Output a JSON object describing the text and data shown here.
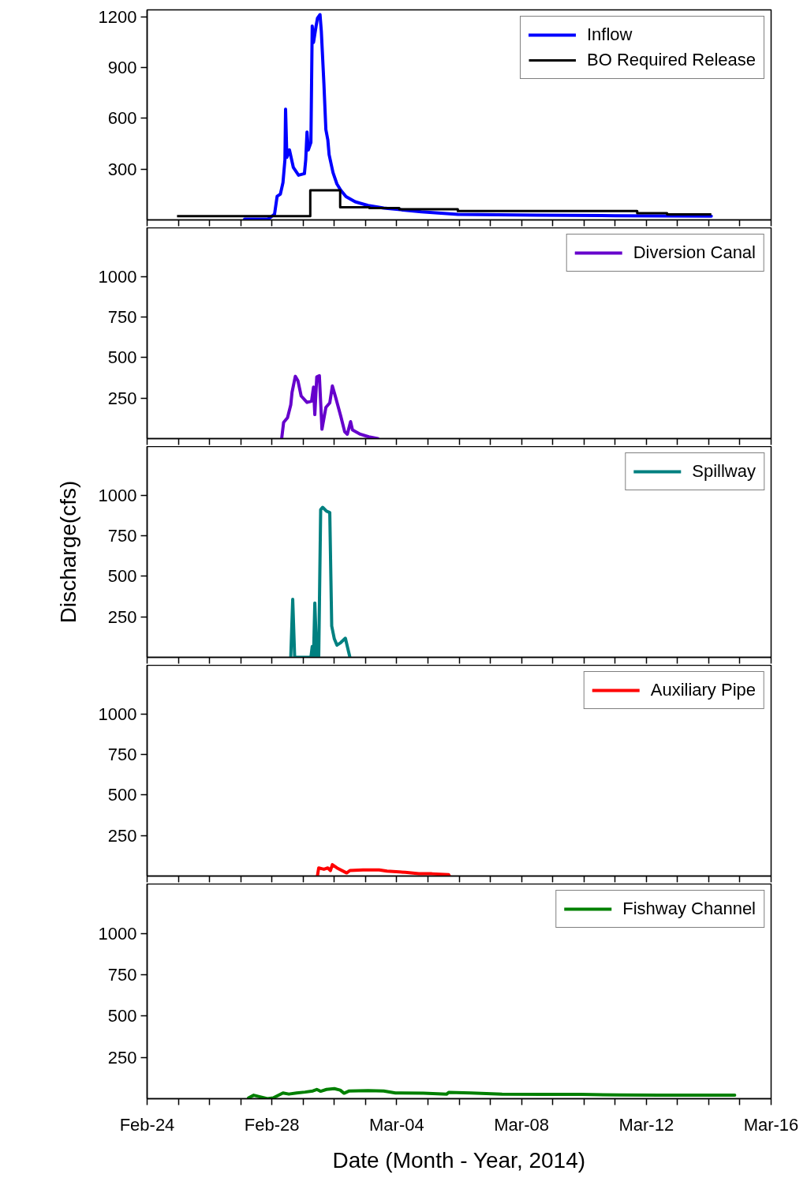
{
  "chart_data": [
    {
      "type": "line",
      "xlim": [
        "2014-02-24",
        "2014-03-16"
      ],
      "ylim": [
        0,
        1240
      ],
      "yticks": [
        300,
        600,
        900,
        1200
      ],
      "tick_labels": "y",
      "legend": "top right",
      "xticks": [
        {
          "value": "2014-02-24",
          "label": null
        },
        {
          "value": "2014-02-25",
          "label": null
        },
        {
          "value": "2014-02-26",
          "label": null
        },
        {
          "value": "2014-02-27",
          "label": null
        },
        {
          "value": "2014-02-28",
          "label": null
        },
        {
          "value": "2014-03-01",
          "label": null
        },
        {
          "value": "2014-03-02",
          "label": null
        },
        {
          "value": "2014-03-03",
          "label": null
        },
        {
          "value": "2014-03-04",
          "label": null
        },
        {
          "value": "2014-03-05",
          "label": null
        },
        {
          "value": "2014-03-06",
          "label": null
        },
        {
          "value": "2014-03-07",
          "label": null
        },
        {
          "value": "2014-03-08",
          "label": null
        },
        {
          "value": "2014-03-09",
          "label": null
        },
        {
          "value": "2014-03-10",
          "label": null
        },
        {
          "value": "2014-03-11",
          "label": null
        },
        {
          "value": "2014-03-12",
          "label": null
        },
        {
          "value": "2014-03-13",
          "label": null
        },
        {
          "value": "2014-03-14",
          "label": null
        },
        {
          "value": "2014-03-15",
          "label": null
        },
        {
          "value": "2014-03-16",
          "label": null
        }
      ],
      "series": [
        {
          "name": "Inflow",
          "color": "#0000ff",
          "x": [
            "2014-02-27T03:00",
            "2014-02-27T17:00",
            "2014-02-27T21:00",
            "2014-02-28T02:00",
            "2014-02-28T04:00",
            "2014-02-28T06:30",
            "2014-02-28T08:30",
            "2014-02-28T10:00",
            "2014-02-28T10:30",
            "2014-02-28T11:30",
            "2014-02-28T13:30",
            "2014-02-28T16:30",
            "2014-02-28T20:30",
            "2014-03-01T01:00",
            "2014-03-01T02:00",
            "2014-03-01T03:00",
            "2014-03-01T04:00",
            "2014-03-01T06:00",
            "2014-03-01T07:00",
            "2014-03-01T08:00",
            "2014-03-01T10:00",
            "2014-03-01T11:00",
            "2014-03-01T13:00",
            "2014-03-01T14:00",
            "2014-03-01T16:00",
            "2014-03-01T17:30",
            "2014-03-01T19:00",
            "2014-03-01T20:00",
            "2014-03-01T23:00",
            "2014-03-02T02:00",
            "2014-03-02T05:00",
            "2014-03-02T09:00",
            "2014-03-02T16:00",
            "2014-03-03T02:00",
            "2014-03-03T14:00",
            "2014-03-04T03:00",
            "2014-03-04T19:00",
            "2014-03-05T23:00",
            "2014-03-08T12:00",
            "2014-03-11T00:00",
            "2014-03-14T02:00"
          ],
          "values": [
            5,
            5,
            5,
            33,
            139,
            152,
            220,
            354,
            654,
            369,
            413,
            309,
            264,
            273,
            354,
            519,
            413,
            458,
            1145,
            1048,
            1145,
            1190,
            1212,
            1115,
            802,
            533,
            473,
            385,
            279,
            212,
            175,
            137,
            107,
            85,
            70,
            60,
            48,
            33,
            28,
            25,
            22
          ]
        },
        {
          "name": "BO Required Release",
          "type": "step",
          "color": "#000000",
          "x": [
            "2014-02-24T23:00",
            "2014-03-01T05:30",
            "2014-03-02T04:30",
            "2014-03-03T03:00",
            "2014-03-04T02:00",
            "2014-03-05T23:00",
            "2014-03-11T17:00",
            "2014-03-12T16:00",
            "2014-03-14T02:00"
          ],
          "values": [
            22,
            175,
            75,
            70,
            63,
            52,
            40,
            33,
            33
          ]
        }
      ]
    },
    {
      "type": "line",
      "xlim": [
        "2014-02-24",
        "2014-03-16"
      ],
      "ylim": [
        0,
        1300
      ],
      "yticks": [
        250,
        500,
        750,
        1000
      ],
      "tick_labels": "y",
      "legend": "top right",
      "xticks": [
        {
          "value": "2014-02-24",
          "label": null
        },
        {
          "value": "2014-02-25",
          "label": null
        },
        {
          "value": "2014-02-26",
          "label": null
        },
        {
          "value": "2014-02-27",
          "label": null
        },
        {
          "value": "2014-02-28",
          "label": null
        },
        {
          "value": "2014-03-01",
          "label": null
        },
        {
          "value": "2014-03-02",
          "label": null
        },
        {
          "value": "2014-03-03",
          "label": null
        },
        {
          "value": "2014-03-04",
          "label": null
        },
        {
          "value": "2014-03-05",
          "label": null
        },
        {
          "value": "2014-03-06",
          "label": null
        },
        {
          "value": "2014-03-07",
          "label": null
        },
        {
          "value": "2014-03-08",
          "label": null
        },
        {
          "value": "2014-03-09",
          "label": null
        },
        {
          "value": "2014-03-10",
          "label": null
        },
        {
          "value": "2014-03-11",
          "label": null
        },
        {
          "value": "2014-03-12",
          "label": null
        },
        {
          "value": "2014-03-13",
          "label": null
        },
        {
          "value": "2014-03-14",
          "label": null
        },
        {
          "value": "2014-03-15",
          "label": null
        },
        {
          "value": "2014-03-16",
          "label": null
        }
      ],
      "series": [
        {
          "name": "Diversion Canal",
          "color": "#6600cc",
          "x": [
            "2014-02-28T07:30",
            "2014-02-28T09:00",
            "2014-02-28T12:00",
            "2014-02-28T14:30",
            "2014-02-28T15:30",
            "2014-02-28T18:00",
            "2014-02-28T20:00",
            "2014-02-28T22:30",
            "2014-03-01T03:00",
            "2014-03-01T06:30",
            "2014-03-01T08:00",
            "2014-03-01T09:00",
            "2014-03-01T10:30",
            "2014-03-01T12:30",
            "2014-03-01T14:30",
            "2014-03-01T17:30",
            "2014-03-01T20:30",
            "2014-03-01T22:30",
            "2014-03-02T01:00",
            "2014-03-02T05:00",
            "2014-03-02T08:00",
            "2014-03-02T10:00",
            "2014-03-02T12:30",
            "2014-03-02T14:00",
            "2014-03-02T20:00",
            "2014-03-03T02:30",
            "2014-03-03T09:30"
          ],
          "values": [
            0,
            100,
            129,
            208,
            286,
            384,
            357,
            263,
            223,
            231,
            318,
            148,
            381,
            388,
            58,
            192,
            220,
            325,
            255,
            137,
            42,
            27,
            105,
            53,
            27,
            11,
            0
          ]
        }
      ]
    },
    {
      "type": "line",
      "xlim": [
        "2014-02-24",
        "2014-03-16"
      ],
      "ylim": [
        0,
        1300
      ],
      "yticks": [
        250,
        500,
        750,
        1000
      ],
      "tick_labels": "y",
      "legend": "top right",
      "ylabel": "Discharge(cfs)",
      "xticks": [
        {
          "value": "2014-02-24",
          "label": null
        },
        {
          "value": "2014-02-25",
          "label": null
        },
        {
          "value": "2014-02-26",
          "label": null
        },
        {
          "value": "2014-02-27",
          "label": null
        },
        {
          "value": "2014-02-28",
          "label": null
        },
        {
          "value": "2014-03-01",
          "label": null
        },
        {
          "value": "2014-03-02",
          "label": null
        },
        {
          "value": "2014-03-03",
          "label": null
        },
        {
          "value": "2014-03-04",
          "label": null
        },
        {
          "value": "2014-03-05",
          "label": null
        },
        {
          "value": "2014-03-06",
          "label": null
        },
        {
          "value": "2014-03-07",
          "label": null
        },
        {
          "value": "2014-03-08",
          "label": null
        },
        {
          "value": "2014-03-09",
          "label": null
        },
        {
          "value": "2014-03-10",
          "label": null
        },
        {
          "value": "2014-03-11",
          "label": null
        },
        {
          "value": "2014-03-12",
          "label": null
        },
        {
          "value": "2014-03-13",
          "label": null
        },
        {
          "value": "2014-03-14",
          "label": null
        },
        {
          "value": "2014-03-15",
          "label": null
        },
        {
          "value": "2014-03-16",
          "label": null
        }
      ],
      "series": [
        {
          "name": "Spillway",
          "color": "#008080",
          "x": [
            "2014-02-28T14:30",
            "2014-02-28T16:00",
            "2014-02-28T17:30",
            "2014-03-01T06:00",
            "2014-03-01T07:00",
            "2014-03-01T08:00",
            "2014-03-01T09:00",
            "2014-03-01T10:30",
            "2014-03-01T12:00",
            "2014-03-01T13:30",
            "2014-03-01T15:00",
            "2014-03-01T18:00",
            "2014-03-01T20:30",
            "2014-03-01T22:00",
            "2014-03-02T00:00",
            "2014-03-02T02:00",
            "2014-03-02T05:00",
            "2014-03-02T08:30",
            "2014-03-02T12:00"
          ],
          "values": [
            0,
            358,
            0,
            0,
            67,
            0,
            335,
            0,
            0,
            910,
            925,
            901,
            893,
            193,
            114,
            75,
            91,
            118,
            0
          ]
        }
      ]
    },
    {
      "type": "line",
      "xlim": [
        "2014-02-24",
        "2014-03-16"
      ],
      "ylim": [
        0,
        1300
      ],
      "yticks": [
        250,
        500,
        750,
        1000
      ],
      "tick_labels": "y",
      "legend": "top right",
      "xticks": [
        {
          "value": "2014-02-24",
          "label": null
        },
        {
          "value": "2014-02-25",
          "label": null
        },
        {
          "value": "2014-02-26",
          "label": null
        },
        {
          "value": "2014-02-27",
          "label": null
        },
        {
          "value": "2014-02-28",
          "label": null
        },
        {
          "value": "2014-03-01",
          "label": null
        },
        {
          "value": "2014-03-02",
          "label": null
        },
        {
          "value": "2014-03-03",
          "label": null
        },
        {
          "value": "2014-03-04",
          "label": null
        },
        {
          "value": "2014-03-05",
          "label": null
        },
        {
          "value": "2014-03-06",
          "label": null
        },
        {
          "value": "2014-03-07",
          "label": null
        },
        {
          "value": "2014-03-08",
          "label": null
        },
        {
          "value": "2014-03-09",
          "label": null
        },
        {
          "value": "2014-03-10",
          "label": null
        },
        {
          "value": "2014-03-11",
          "label": null
        },
        {
          "value": "2014-03-12",
          "label": null
        },
        {
          "value": "2014-03-13",
          "label": null
        },
        {
          "value": "2014-03-14",
          "label": null
        },
        {
          "value": "2014-03-15",
          "label": null
        },
        {
          "value": "2014-03-16",
          "label": null
        }
      ],
      "series": [
        {
          "name": "Auxiliary Pipe",
          "color": "#ff0000",
          "x": [
            "2014-03-01T11:00",
            "2014-03-01T12:00",
            "2014-03-01T16:00",
            "2014-03-01T19:00",
            "2014-03-01T21:00",
            "2014-03-01T22:30",
            "2014-03-02T02:00",
            "2014-03-02T09:30",
            "2014-03-02T12:00",
            "2014-03-02T22:00",
            "2014-03-03T10:30",
            "2014-03-03T16:30",
            "2014-03-04T06:30",
            "2014-03-04T17:00",
            "2014-03-05T03:00",
            "2014-03-05T16:00",
            "2014-03-05T16:30"
          ],
          "values": [
            0,
            50,
            42,
            50,
            34,
            70,
            50,
            19,
            34,
            38,
            38,
            30,
            23,
            15,
            14,
            8,
            0
          ]
        }
      ]
    },
    {
      "type": "line",
      "xlim": [
        "2014-02-24",
        "2014-03-16"
      ],
      "ylim": [
        0,
        1300
      ],
      "yticks": [
        250,
        500,
        750,
        1000
      ],
      "legend": "top right",
      "xlabel": "Date (Month - Year, 2014)",
      "xticks": [
        {
          "value": "2014-02-24",
          "label": "Feb-24"
        },
        {
          "value": "2014-02-25",
          "label": null
        },
        {
          "value": "2014-02-26",
          "label": null
        },
        {
          "value": "2014-02-27",
          "label": null
        },
        {
          "value": "2014-02-28",
          "label": "Feb-28"
        },
        {
          "value": "2014-03-01",
          "label": null
        },
        {
          "value": "2014-03-02",
          "label": null
        },
        {
          "value": "2014-03-03",
          "label": null
        },
        {
          "value": "2014-03-04",
          "label": "Mar-04"
        },
        {
          "value": "2014-03-05",
          "label": null
        },
        {
          "value": "2014-03-06",
          "label": null
        },
        {
          "value": "2014-03-07",
          "label": null
        },
        {
          "value": "2014-03-08",
          "label": "Mar-08"
        },
        {
          "value": "2014-03-09",
          "label": null
        },
        {
          "value": "2014-03-10",
          "label": null
        },
        {
          "value": "2014-03-11",
          "label": null
        },
        {
          "value": "2014-03-12",
          "label": "Mar-12"
        },
        {
          "value": "2014-03-13",
          "label": null
        },
        {
          "value": "2014-03-14",
          "label": null
        },
        {
          "value": "2014-03-15",
          "label": null
        },
        {
          "value": "2014-03-16",
          "label": "Mar-16"
        }
      ],
      "series": [
        {
          "name": "Fishway Channel",
          "color": "#008000",
          "x": [
            "2014-02-27T06:00",
            "2014-02-27T10:00",
            "2014-02-27T20:30",
            "2014-02-28T01:00",
            "2014-02-28T08:30",
            "2014-02-28T13:00",
            "2014-02-28T19:00",
            "2014-03-01T01:30",
            "2014-03-01T07:30",
            "2014-03-01T10:30",
            "2014-03-01T13:30",
            "2014-03-01T18:00",
            "2014-03-02T00:00",
            "2014-03-02T04:30",
            "2014-03-02T07:30",
            "2014-03-02T11:30",
            "2014-03-03T02:00",
            "2014-03-03T14:00",
            "2014-03-03T23:00",
            "2014-03-04T20:30",
            "2014-03-05T14:30",
            "2014-03-05T16:00",
            "2014-03-06T09:00",
            "2014-03-07T09:00",
            "2014-03-08T15:30",
            "2014-03-09T21:30",
            "2014-03-11T04:00",
            "2014-03-12T10:30",
            "2014-03-14T20:00"
          ],
          "values": [
            5,
            21,
            0,
            5,
            35,
            28,
            35,
            40,
            47,
            56,
            45,
            56,
            61,
            52,
            33,
            47,
            49,
            47,
            35,
            33,
            28,
            38,
            35,
            28,
            26,
            26,
            23,
            21,
            21
          ]
        }
      ]
    }
  ]
}
